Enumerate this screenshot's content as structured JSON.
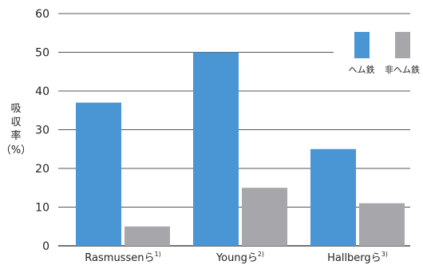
{
  "chart_data": {
    "type": "bar",
    "title": "",
    "xlabel": "",
    "ylabel_chars": [
      "吸",
      "収",
      "率"
    ],
    "ylabel_unit": "（%）",
    "ylim": [
      0,
      60
    ],
    "yticks": [
      0,
      10,
      20,
      30,
      40,
      50,
      60
    ],
    "grid": true,
    "legend_position": "top-right",
    "categories": [
      {
        "name": "Rasmussenら",
        "ref": "1)"
      },
      {
        "name": "Youngら",
        "ref": "2)"
      },
      {
        "name": "Hallbergら",
        "ref": "3)"
      }
    ],
    "series": [
      {
        "name": "ヘム鉄",
        "color": "#4a95d3",
        "values": [
          37,
          50,
          25
        ]
      },
      {
        "name": "非ヘム鉄",
        "color": "#a7a7ab",
        "values": [
          5,
          15,
          11
        ]
      }
    ]
  }
}
